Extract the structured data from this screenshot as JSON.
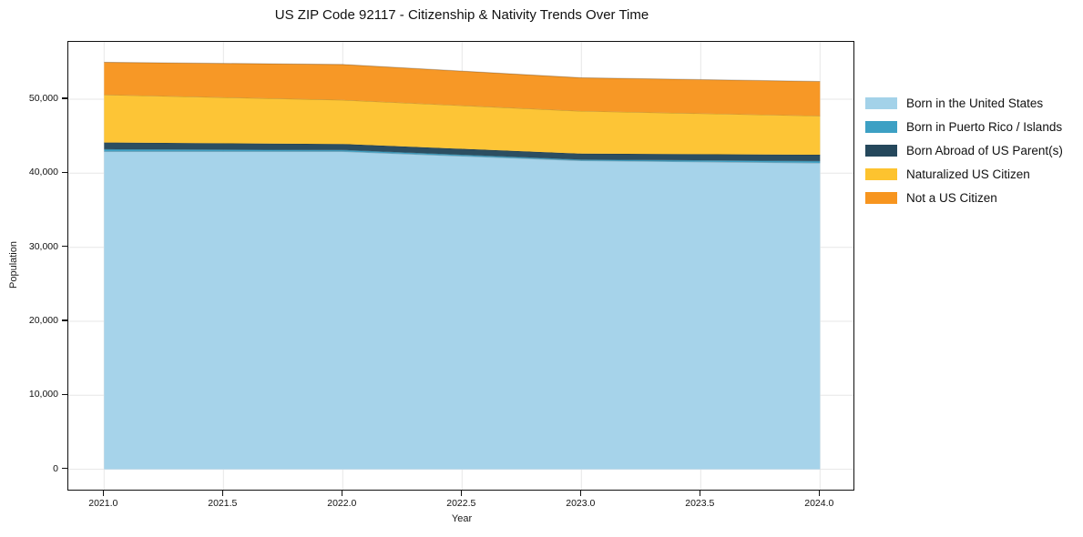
{
  "chart": {
    "title": "US ZIP Code 92117 - Citizenship & Nativity Trends Over Time",
    "xlabel": "Year",
    "ylabel": "Population"
  },
  "chart_data": {
    "type": "area",
    "stacked": true,
    "title": "US ZIP Code 92117 - Citizenship & Nativity Trends Over Time",
    "xlabel": "Year",
    "ylabel": "Population",
    "x": [
      2021,
      2022,
      2023,
      2024
    ],
    "series": [
      {
        "name": "Born in the United States",
        "color": "#a3d2e9",
        "values": [
          42950,
          42950,
          41700,
          41400
        ]
      },
      {
        "name": "Born in Puerto Rico / Islands",
        "color": "#3da0c4",
        "values": [
          300,
          200,
          150,
          250
        ]
      },
      {
        "name": "Born Abroad of US Parent(s)",
        "color": "#25485c",
        "values": [
          900,
          800,
          800,
          850
        ]
      },
      {
        "name": "Naturalized US Citizen",
        "color": "#fdc32f",
        "values": [
          6450,
          5950,
          5750,
          5250
        ]
      },
      {
        "name": "Not a US Citizen",
        "color": "#f7951f",
        "values": [
          4400,
          4800,
          4500,
          4650
        ]
      }
    ],
    "totals": [
      55000,
      54700,
      52900,
      52400
    ],
    "x_ticks": [
      "2021.0",
      "2021.5",
      "2022.0",
      "2022.5",
      "2023.0",
      "2023.5",
      "2024.0"
    ],
    "x_tick_values": [
      2021,
      2021.5,
      2022,
      2022.5,
      2023,
      2023.5,
      2024
    ],
    "y_ticks": [
      "0",
      "10,000",
      "20,000",
      "30,000",
      "40,000",
      "50,000"
    ],
    "y_tick_values": [
      0,
      10000,
      20000,
      30000,
      40000,
      50000
    ],
    "xlim": [
      2020.85,
      2024.14
    ],
    "ylim": [
      -2750,
      57750
    ],
    "grid": true,
    "grid_color": "#e7e7e7",
    "axis_color": "#101010",
    "legend_position": "right"
  }
}
